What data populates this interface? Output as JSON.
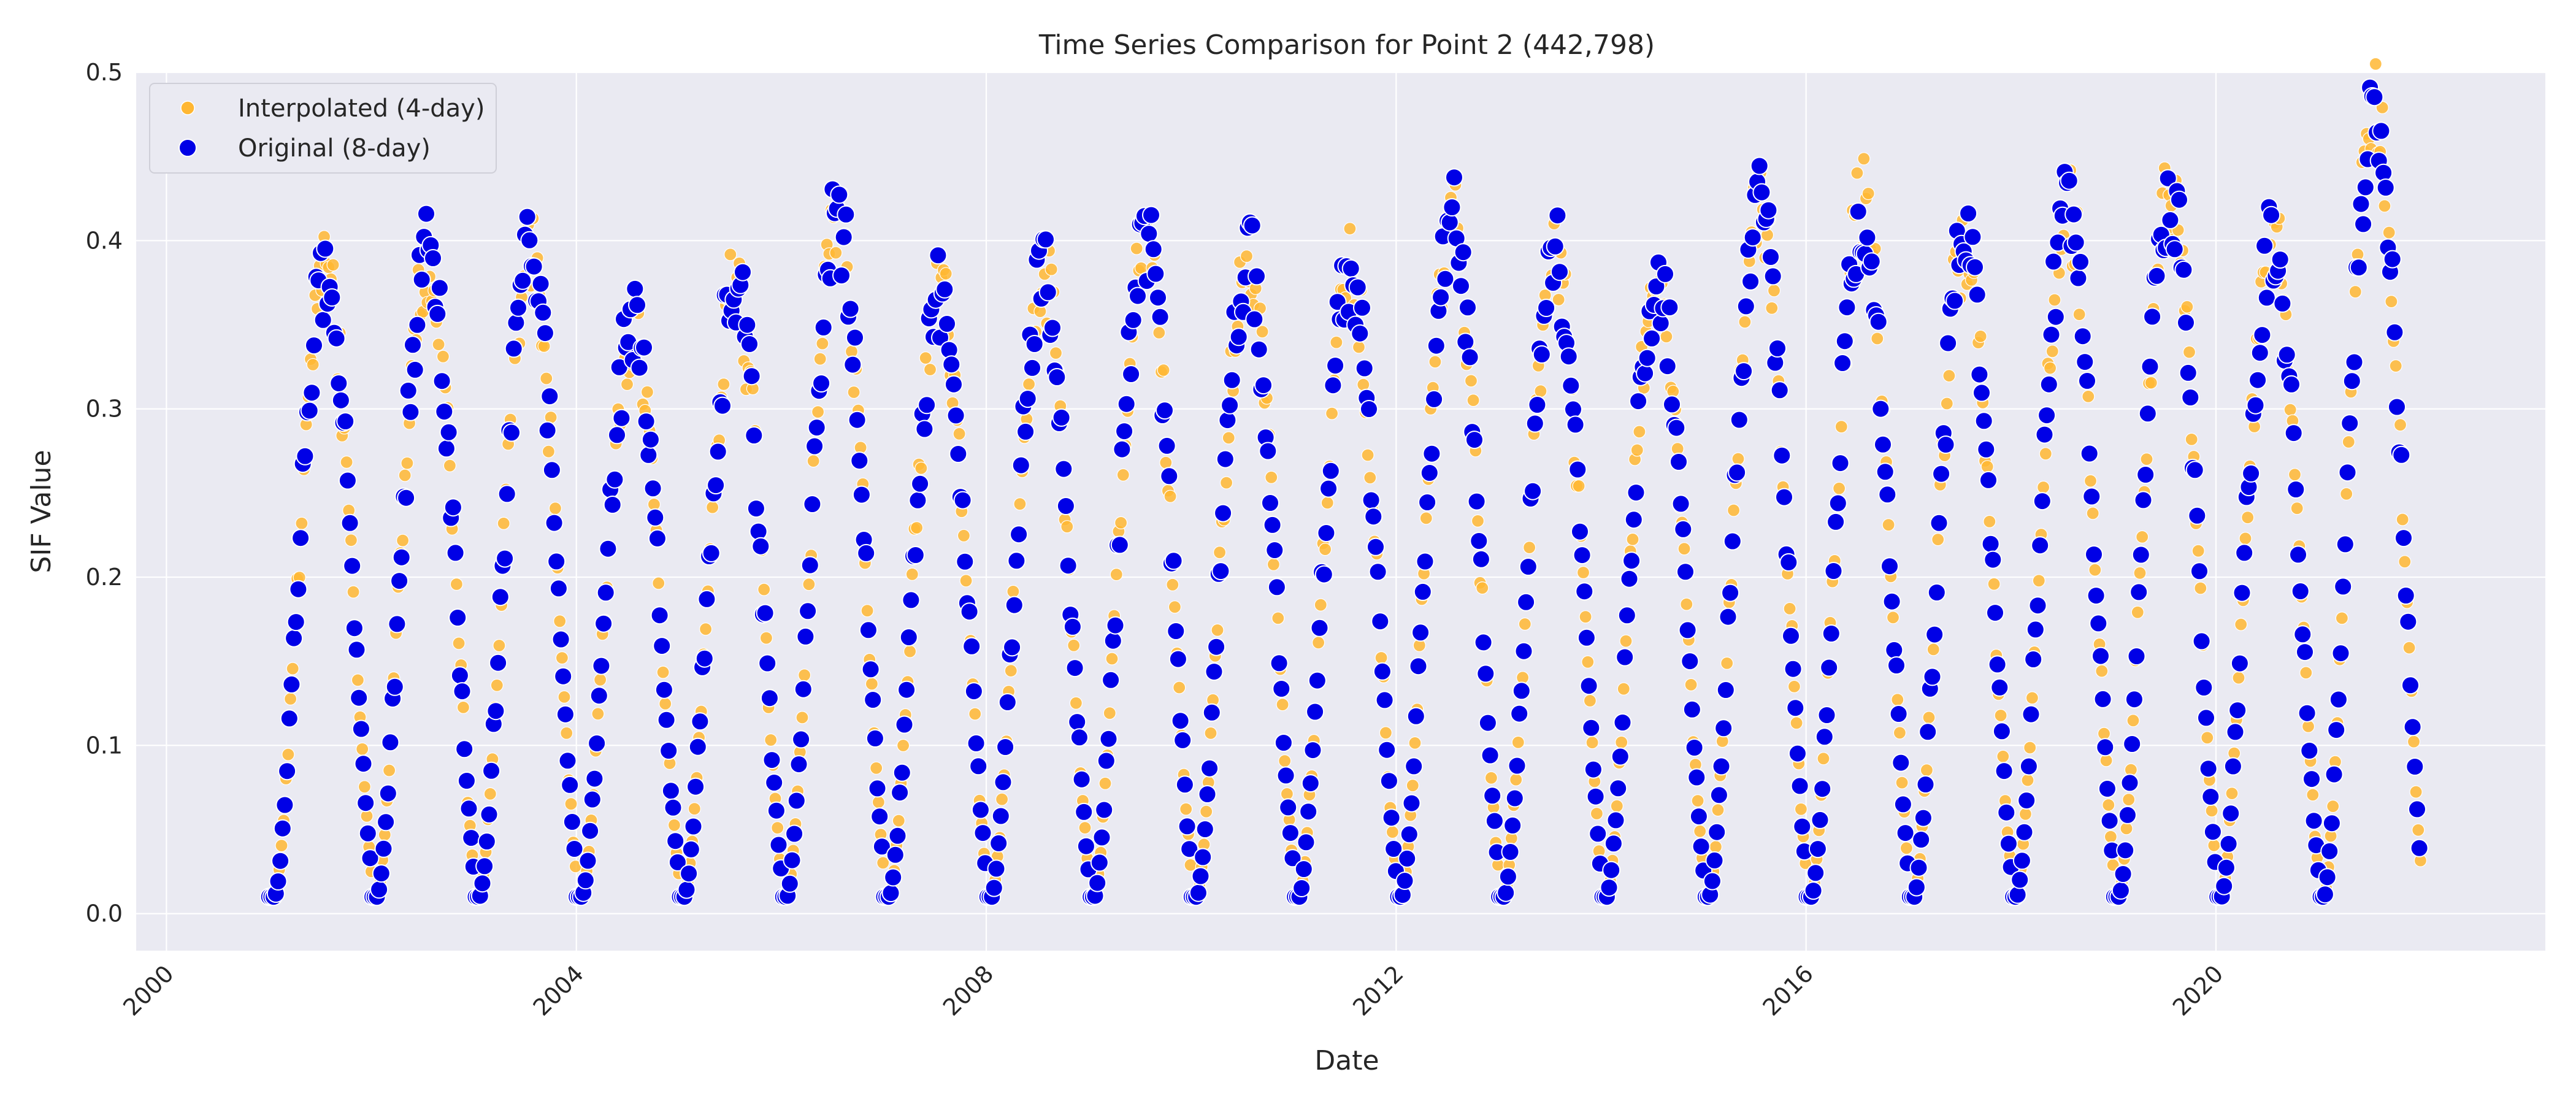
{
  "chart_data": {
    "type": "scatter",
    "title": "Time Series Comparison for Point 2 (442,798)",
    "xlabel": "Date",
    "ylabel": "SIF Value",
    "xlim": [
      "1999-09-15",
      "2023-03-20"
    ],
    "ylim": [
      -0.022,
      0.5
    ],
    "x_ticks": [
      "2000",
      "2004",
      "2008",
      "2012",
      "2016",
      "2020"
    ],
    "y_ticks": [
      "0.0",
      "0.1",
      "0.2",
      "0.3",
      "0.4",
      "0.5"
    ],
    "grid": true,
    "legend_position": "top-left",
    "series": [
      {
        "name": "Interpolated (4-day)",
        "color": "#FFB733",
        "interval_days": 4
      },
      {
        "name": "Original (8-day)",
        "color": "#0000E6",
        "interval_days": 8
      }
    ],
    "start_date": "2001-01-01",
    "end_date": "2021-12-31",
    "annual_peaks": [
      {
        "year": 2001,
        "peak": 0.38
      },
      {
        "year": 2002,
        "peak": 0.39
      },
      {
        "year": 2003,
        "peak": 0.39
      },
      {
        "year": 2004,
        "peak": 0.35
      },
      {
        "year": 2005,
        "peak": 0.37
      },
      {
        "year": 2006,
        "peak": 0.41
      },
      {
        "year": 2007,
        "peak": 0.37
      },
      {
        "year": 2008,
        "peak": 0.38
      },
      {
        "year": 2009,
        "peak": 0.4
      },
      {
        "year": 2010,
        "peak": 0.39
      },
      {
        "year": 2011,
        "peak": 0.38
      },
      {
        "year": 2012,
        "peak": 0.41
      },
      {
        "year": 2013,
        "peak": 0.39
      },
      {
        "year": 2014,
        "peak": 0.38
      },
      {
        "year": 2015,
        "peak": 0.42
      },
      {
        "year": 2016,
        "peak": 0.42
      },
      {
        "year": 2017,
        "peak": 0.4
      },
      {
        "year": 2018,
        "peak": 0.42
      },
      {
        "year": 2019,
        "peak": 0.43
      },
      {
        "year": 2020,
        "peak": 0.4
      },
      {
        "year": 2021,
        "peak": 0.48
      }
    ],
    "annual_minimum": 0.01
  }
}
